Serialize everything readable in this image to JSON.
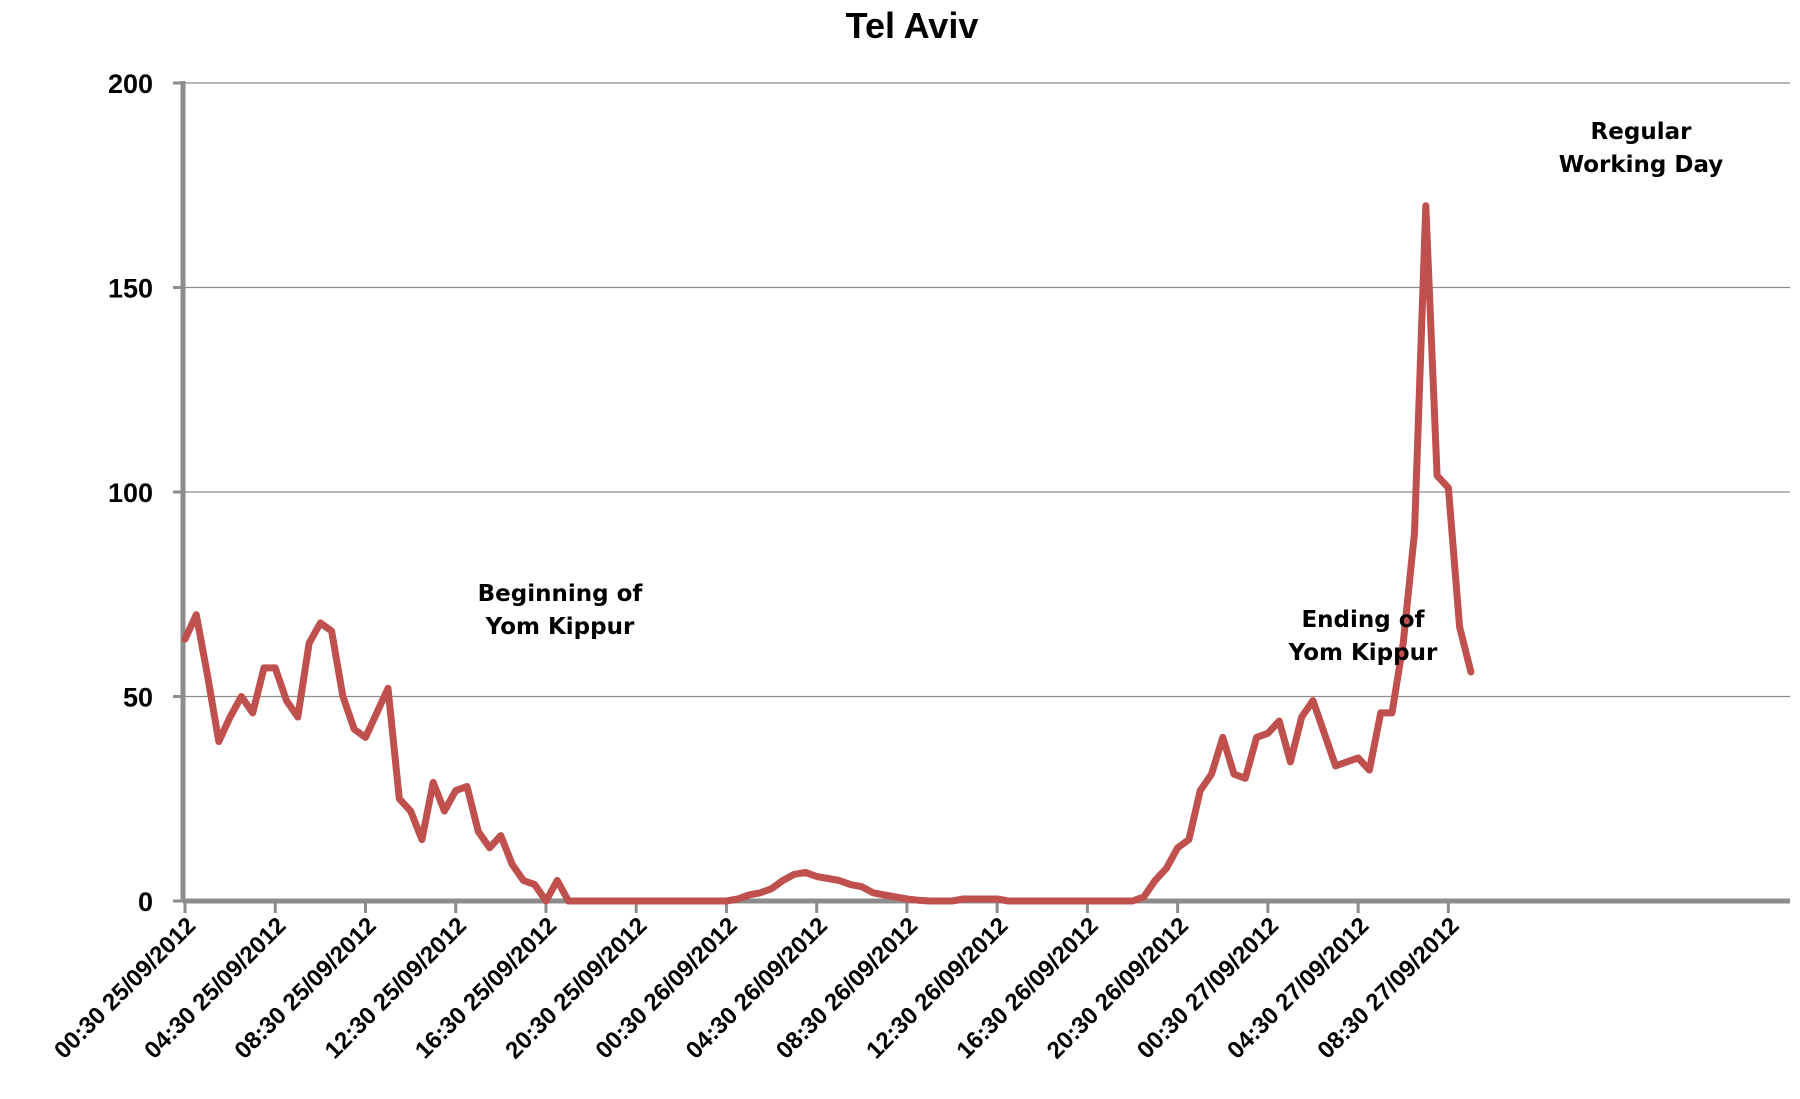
{
  "chart_data": {
    "type": "line",
    "title": "Tel Aviv",
    "xlabel": "",
    "ylabel": "",
    "ylim": [
      0,
      200
    ],
    "yticks": [
      "0",
      "50",
      "100",
      "150",
      "200"
    ],
    "grid": true,
    "legend": "none",
    "x_tick_labels": [
      "00:30 25/09/2012",
      "04:30 25/09/2012",
      "08:30 25/09/2012",
      "12:30 25/09/2012",
      "16:30 25/09/2012",
      "20:30 25/09/2012",
      "00:30 26/09/2012",
      "04:30 26/09/2012",
      "08:30 26/09/2012",
      "12:30 26/09/2012",
      "16:30 26/09/2012",
      "20:30 26/09/2012",
      "00:30 27/09/2012",
      "04:30 27/09/2012",
      "08:30 27/09/2012"
    ],
    "x_start": "00:30 25/09/2012",
    "x_interval_minutes": 30,
    "series": [
      {
        "color": "#c0504d",
        "values": [
          64,
          70,
          55,
          39,
          45,
          50,
          46,
          57,
          57,
          49,
          45,
          63,
          68,
          66,
          50,
          42,
          40,
          46,
          52,
          25,
          22,
          15,
          29,
          22,
          27,
          28,
          17,
          13,
          16,
          9,
          5,
          4,
          0,
          5,
          0,
          0,
          0,
          0,
          0,
          0,
          0,
          0,
          0,
          0,
          0,
          0,
          0,
          0,
          0,
          0.5,
          1.5,
          2,
          3,
          5,
          6.5,
          7,
          6,
          5.5,
          5,
          4,
          3.5,
          2,
          1.5,
          1,
          0.5,
          0.2,
          0,
          0,
          0,
          0.5,
          0.5,
          0.5,
          0.5,
          0,
          0,
          0,
          0,
          0,
          0,
          0,
          0,
          0,
          0,
          0,
          0,
          1,
          5,
          8,
          13,
          15,
          27,
          31,
          40,
          31,
          30,
          40,
          41,
          44,
          34,
          45,
          49,
          41,
          33,
          34,
          35,
          32,
          46,
          46,
          63,
          90,
          170,
          104,
          101,
          67,
          56
        ]
      }
    ],
    "annotations": [
      {
        "lines": [
          "Beginning of",
          "Yom Kippur"
        ]
      },
      {
        "lines": [
          "Ending of",
          "Yom Kippur"
        ]
      },
      {
        "lines": [
          "Regular",
          "Working Day"
        ]
      }
    ]
  }
}
